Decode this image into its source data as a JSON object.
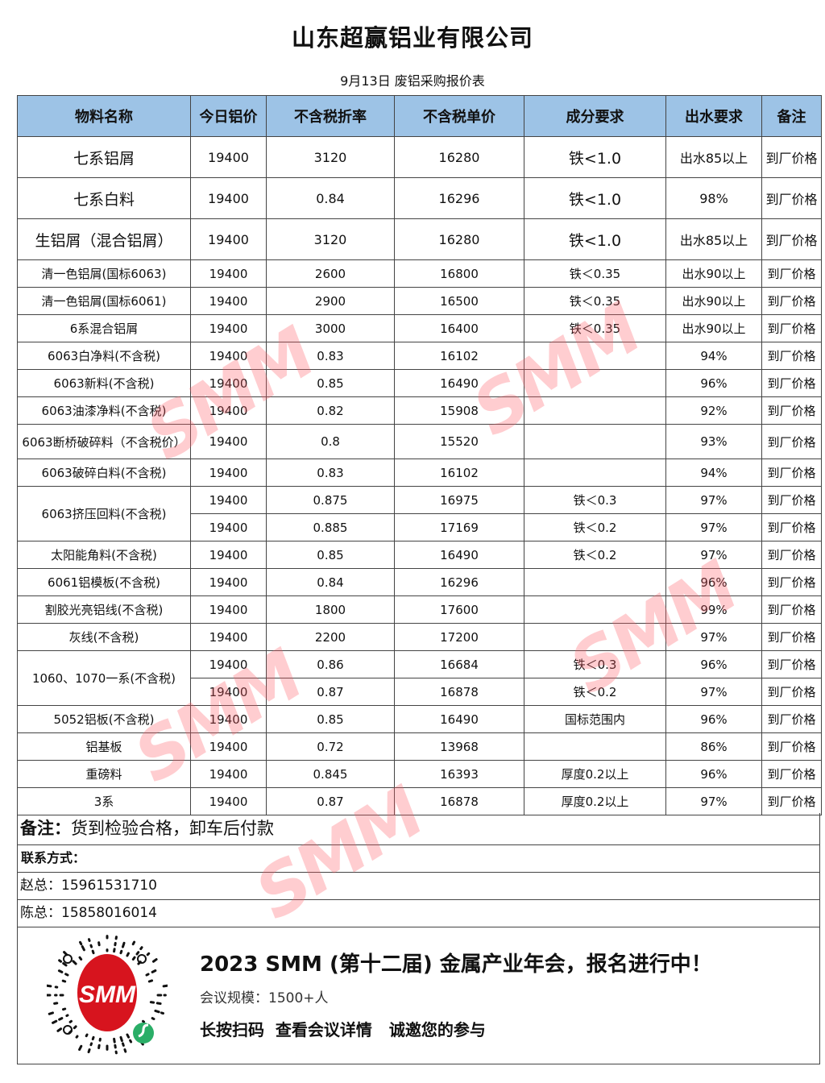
{
  "title": "山东超赢铝业有限公司",
  "subtitle": "9月13日 废铝采购报价表",
  "headers": [
    "物料名称",
    "今日铝价",
    "不含税折率",
    "不含税单价",
    "成分要求",
    "出水要求",
    "备注"
  ],
  "rows": [
    {
      "name": "七系铝屑",
      "price": "19400",
      "rate": "3120",
      "unit": "16280",
      "comp": "铁<1.0",
      "water": "出水85以上",
      "note": "到厂价格",
      "style": "big"
    },
    {
      "name": "七系白料",
      "price": "19400",
      "rate": "0.84",
      "unit": "16296",
      "comp": "铁<1.0",
      "water": "98%",
      "note": "到厂价格",
      "style": "big"
    },
    {
      "name": "生铝屑（混合铝屑）",
      "price": "19400",
      "rate": "3120",
      "unit": "16280",
      "comp": "铁<1.0",
      "water": "出水85以上",
      "note": "到厂价格",
      "style": "big"
    },
    {
      "name": "清一色铝屑(国标6063)",
      "price": "19400",
      "rate": "2600",
      "unit": "16800",
      "comp": "铁＜0.35",
      "water": "出水90以上",
      "note": "到厂价格"
    },
    {
      "name": "清一色铝屑(国标6061)",
      "price": "19400",
      "rate": "2900",
      "unit": "16500",
      "comp": "铁＜0.35",
      "water": "出水90以上",
      "note": "到厂价格"
    },
    {
      "name": "6系混合铝屑",
      "price": "19400",
      "rate": "3000",
      "unit": "16400",
      "comp": "铁＜0.35",
      "water": "出水90以上",
      "note": "到厂价格"
    },
    {
      "name": "6063白净料(不含税)",
      "price": "19400",
      "rate": "0.83",
      "unit": "16102",
      "comp": "",
      "water": "94%",
      "note": "到厂价格"
    },
    {
      "name": "6063新料(不含税)",
      "price": "19400",
      "rate": "0.85",
      "unit": "16490",
      "comp": "",
      "water": "96%",
      "note": "到厂价格"
    },
    {
      "name": "6063油漆净料(不含税)",
      "price": "19400",
      "rate": "0.82",
      "unit": "15908",
      "comp": "",
      "water": "92%",
      "note": "到厂价格"
    },
    {
      "name": "6063断桥破碎料（不含税价）",
      "price": "19400",
      "rate": "0.8",
      "unit": "15520",
      "comp": "",
      "water": "93%",
      "note": "到厂价格",
      "style": "tall"
    },
    {
      "name": "6063破碎白料(不含税)",
      "price": "19400",
      "rate": "0.83",
      "unit": "16102",
      "comp": "",
      "water": "94%",
      "note": "到厂价格"
    },
    {
      "name": "6063挤压回料(不含税)",
      "span": 2,
      "price": "19400",
      "rate": "0.875",
      "unit": "16975",
      "comp": "铁＜0.3",
      "water": "97%",
      "note": "到厂价格"
    },
    {
      "price": "19400",
      "rate": "0.885",
      "unit": "17169",
      "comp": "铁＜0.2",
      "water": "97%",
      "note": "到厂价格"
    },
    {
      "name": "太阳能角料(不含税)",
      "price": "19400",
      "rate": "0.85",
      "unit": "16490",
      "comp": "铁＜0.2",
      "water": "97%",
      "note": "到厂价格"
    },
    {
      "name": "6061铝模板(不含税)",
      "price": "19400",
      "rate": "0.84",
      "unit": "16296",
      "comp": "",
      "water": "96%",
      "note": "到厂价格"
    },
    {
      "name": "割胶光亮铝线(不含税)",
      "price": "19400",
      "rate": "1800",
      "unit": "17600",
      "comp": "",
      "water": "99%",
      "note": "到厂价格"
    },
    {
      "name": "灰线(不含税)",
      "price": "19400",
      "rate": "2200",
      "unit": "17200",
      "comp": "",
      "water": "97%",
      "note": "到厂价格"
    },
    {
      "name": "1060、1070一系(不含税)",
      "span": 2,
      "price": "19400",
      "rate": "0.86",
      "unit": "16684",
      "comp": "铁＜0.3",
      "water": "96%",
      "note": "到厂价格"
    },
    {
      "price": "19400",
      "rate": "0.87",
      "unit": "16878",
      "comp": "铁＜0.2",
      "water": "97%",
      "note": "到厂价格"
    },
    {
      "name": "5052铝板(不含税)",
      "price": "19400",
      "rate": "0.85",
      "unit": "16490",
      "comp": "国标范围内",
      "water": "96%",
      "note": "到厂价格"
    },
    {
      "name": "铝基板",
      "price": "19400",
      "rate": "0.72",
      "unit": "13968",
      "comp": "",
      "water": "86%",
      "note": "到厂价格"
    },
    {
      "name": "重磅料",
      "price": "19400",
      "rate": "0.845",
      "unit": "16393",
      "comp": "厚度0.2以上",
      "water": "96%",
      "note": "到厂价格"
    },
    {
      "name": "3系",
      "price": "19400",
      "rate": "0.87",
      "unit": "16878",
      "comp": "厚度0.2以上",
      "water": "97%",
      "note": "到厂价格"
    }
  ],
  "remark": {
    "label": "备注：",
    "text": "货到检验合格，卸车后付款"
  },
  "contact": {
    "label": "联系方式：",
    "lines": [
      "赵总：15961531710",
      "陈总：15858016014"
    ]
  },
  "ad": {
    "headline": "2023 SMM (第十二届) 金属产业年会，报名进行中！",
    "scale": "会议规模：1500+人",
    "cta": "长按扫码  查看会议详情   诚邀您的参与",
    "logo": "SMM"
  },
  "watermark": "SMM",
  "colors": {
    "header_bg": "#9dc3e6",
    "watermark": "#ff5a64",
    "logo_red": "#d7141e",
    "wechat_green": "#2aae67"
  }
}
